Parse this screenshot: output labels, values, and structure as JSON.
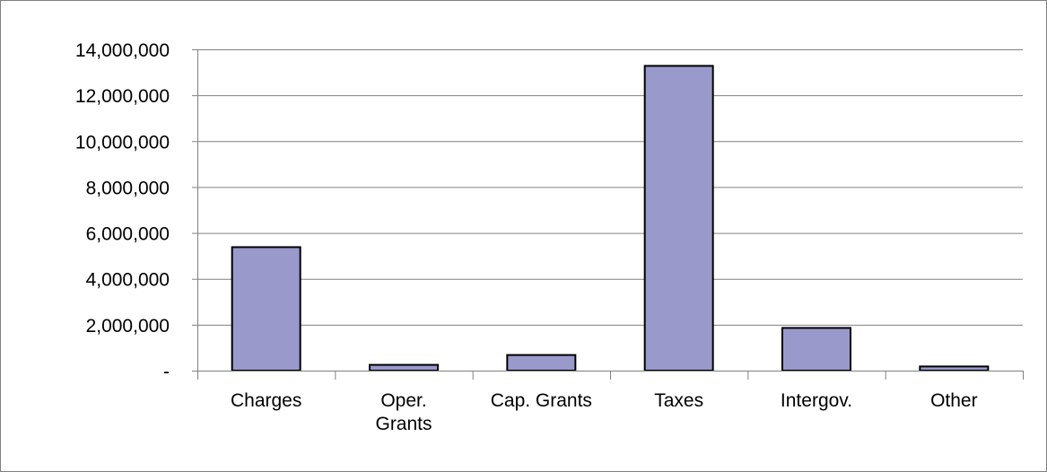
{
  "chart_data": {
    "type": "bar",
    "title": "",
    "xlabel": "",
    "ylabel": "",
    "categories": [
      [
        "Charges"
      ],
      [
        "Oper.",
        "Grants"
      ],
      [
        "Cap. Grants"
      ],
      [
        "Taxes"
      ],
      [
        "Intergov."
      ],
      [
        "Other"
      ]
    ],
    "values": [
      5380000,
      250000,
      680000,
      13280000,
      1860000,
      180000
    ],
    "ylim": [
      0,
      14000000
    ],
    "yticks": [
      0,
      2000000,
      4000000,
      6000000,
      8000000,
      10000000,
      12000000,
      14000000
    ],
    "ytick_labels": [
      "-",
      "2,000,000",
      "4,000,000",
      "6,000,000",
      "8,000,000",
      "10,000,000",
      "12,000,000",
      "14,000,000"
    ],
    "grid": true,
    "legend": "none",
    "bar_color": "#9999cc",
    "bar_edge_color": "#000000",
    "grid_color": "#808080"
  }
}
